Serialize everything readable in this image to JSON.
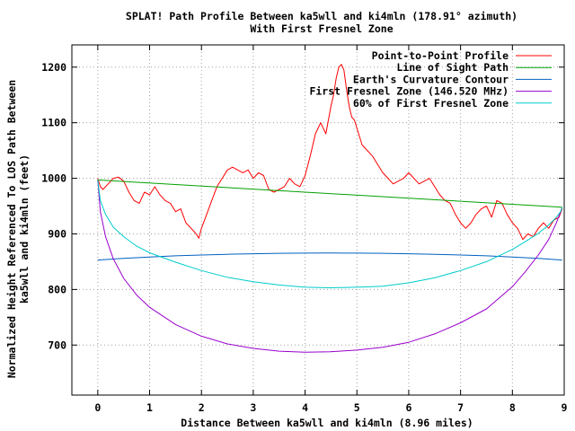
{
  "chart_data": {
    "type": "line",
    "title": "SPLAT! Path Profile Between ka5wll and ki4mln (178.91° azimuth)",
    "subtitle": "With First Fresnel Zone",
    "xlabel": "Distance Between ka5wll and ki4mln (8.96 miles)",
    "ylabel_line1": "Normalized Height Referenced To LOS Path Between",
    "ylabel_line2": "ka5wll and ki4mln (feet)",
    "xlim": [
      -0.5,
      9.0
    ],
    "ylim": [
      610,
      1240
    ],
    "x_ticks": [
      0,
      1,
      2,
      3,
      4,
      5,
      6,
      7,
      8,
      9
    ],
    "y_ticks": [
      700,
      800,
      900,
      1000,
      1100,
      1200
    ],
    "grid": true,
    "legend_position": "top-right",
    "series": [
      {
        "name": "Point-to-Point Profile",
        "color": "#ff0000",
        "x": [
          0,
          0.05,
          0.1,
          0.2,
          0.3,
          0.4,
          0.5,
          0.6,
          0.7,
          0.8,
          0.9,
          1.0,
          1.1,
          1.2,
          1.3,
          1.4,
          1.5,
          1.6,
          1.7,
          1.8,
          1.9,
          1.95,
          2.0,
          2.1,
          2.2,
          2.3,
          2.4,
          2.5,
          2.6,
          2.7,
          2.8,
          2.9,
          3.0,
          3.1,
          3.2,
          3.3,
          3.4,
          3.5,
          3.6,
          3.7,
          3.8,
          3.9,
          4.0,
          4.1,
          4.2,
          4.3,
          4.4,
          4.5,
          4.55,
          4.6,
          4.65,
          4.7,
          4.75,
          4.8,
          4.85,
          4.9,
          4.95,
          5.0,
          5.1,
          5.2,
          5.3,
          5.4,
          5.5,
          5.6,
          5.7,
          5.8,
          5.9,
          6.0,
          6.1,
          6.2,
          6.3,
          6.4,
          6.5,
          6.6,
          6.7,
          6.8,
          6.9,
          7.0,
          7.1,
          7.2,
          7.3,
          7.4,
          7.5,
          7.6,
          7.7,
          7.8,
          7.9,
          8.0,
          8.1,
          8.2,
          8.3,
          8.4,
          8.5,
          8.6,
          8.7,
          8.8,
          8.9,
          8.96
        ],
        "y": [
          1000,
          985,
          980,
          990,
          1000,
          1002,
          995,
          975,
          960,
          955,
          975,
          970,
          985,
          970,
          960,
          955,
          940,
          945,
          920,
          910,
          900,
          892,
          910,
          935,
          960,
          985,
          1000,
          1015,
          1020,
          1015,
          1010,
          1015,
          1000,
          1010,
          1005,
          980,
          975,
          980,
          985,
          1000,
          990,
          985,
          1005,
          1040,
          1080,
          1100,
          1080,
          1130,
          1150,
          1180,
          1200,
          1205,
          1195,
          1160,
          1130,
          1110,
          1105,
          1090,
          1060,
          1050,
          1040,
          1025,
          1010,
          1000,
          990,
          995,
          1000,
          1010,
          1000,
          990,
          995,
          1000,
          985,
          970,
          960,
          955,
          935,
          920,
          910,
          920,
          935,
          945,
          950,
          930,
          960,
          955,
          935,
          920,
          910,
          890,
          900,
          895,
          910,
          920,
          910,
          925,
          930,
          945
        ]
      },
      {
        "name": "Line of Sight Path",
        "color": "#00a000",
        "x": [
          0,
          8.96
        ],
        "y": [
          997,
          948
        ]
      },
      {
        "name": "Earth's Curvature Contour",
        "color": "#0060c0",
        "x": [
          0,
          0.5,
          1,
          1.5,
          2,
          2.5,
          3,
          3.5,
          4,
          4.48,
          5,
          5.5,
          6,
          6.5,
          7,
          7.5,
          8,
          8.5,
          8.96
        ],
        "y": [
          853,
          856,
          858.5,
          860.5,
          862,
          863.3,
          864.3,
          865,
          865.4,
          865.5,
          865.4,
          865,
          864.3,
          863.3,
          862,
          860.5,
          858.5,
          856,
          853
        ]
      },
      {
        "name": "First Fresnel Zone (146.520 MHz)",
        "color": "#9900cc",
        "x": [
          0,
          0.05,
          0.15,
          0.3,
          0.5,
          0.75,
          1,
          1.5,
          2,
          2.5,
          3,
          3.5,
          4,
          4.48,
          5,
          5.5,
          6,
          6.5,
          7,
          7.5,
          8,
          8.25,
          8.5,
          8.7,
          8.85,
          8.93,
          8.96
        ],
        "y": [
          997,
          940,
          895,
          855,
          820,
          790,
          768,
          737,
          716,
          702,
          694,
          689,
          687,
          688,
          691,
          696,
          705,
          720,
          740,
          765,
          805,
          832,
          862,
          890,
          920,
          940,
          948
        ]
      },
      {
        "name": "60% of First Fresnel Zone",
        "color": "#00cccc",
        "x": [
          0,
          0.05,
          0.15,
          0.3,
          0.5,
          0.75,
          1,
          1.5,
          2,
          2.5,
          3,
          3.5,
          4,
          4.48,
          5,
          5.5,
          6,
          6.5,
          7,
          7.5,
          8,
          8.25,
          8.5,
          8.7,
          8.85,
          8.93,
          8.96
        ],
        "y": [
          997,
          960,
          935,
          912,
          895,
          878,
          866,
          849,
          834,
          822,
          814,
          808,
          804,
          803,
          804,
          806,
          812,
          821,
          834,
          850,
          872,
          886,
          901,
          916,
          930,
          940,
          948
        ]
      }
    ]
  }
}
